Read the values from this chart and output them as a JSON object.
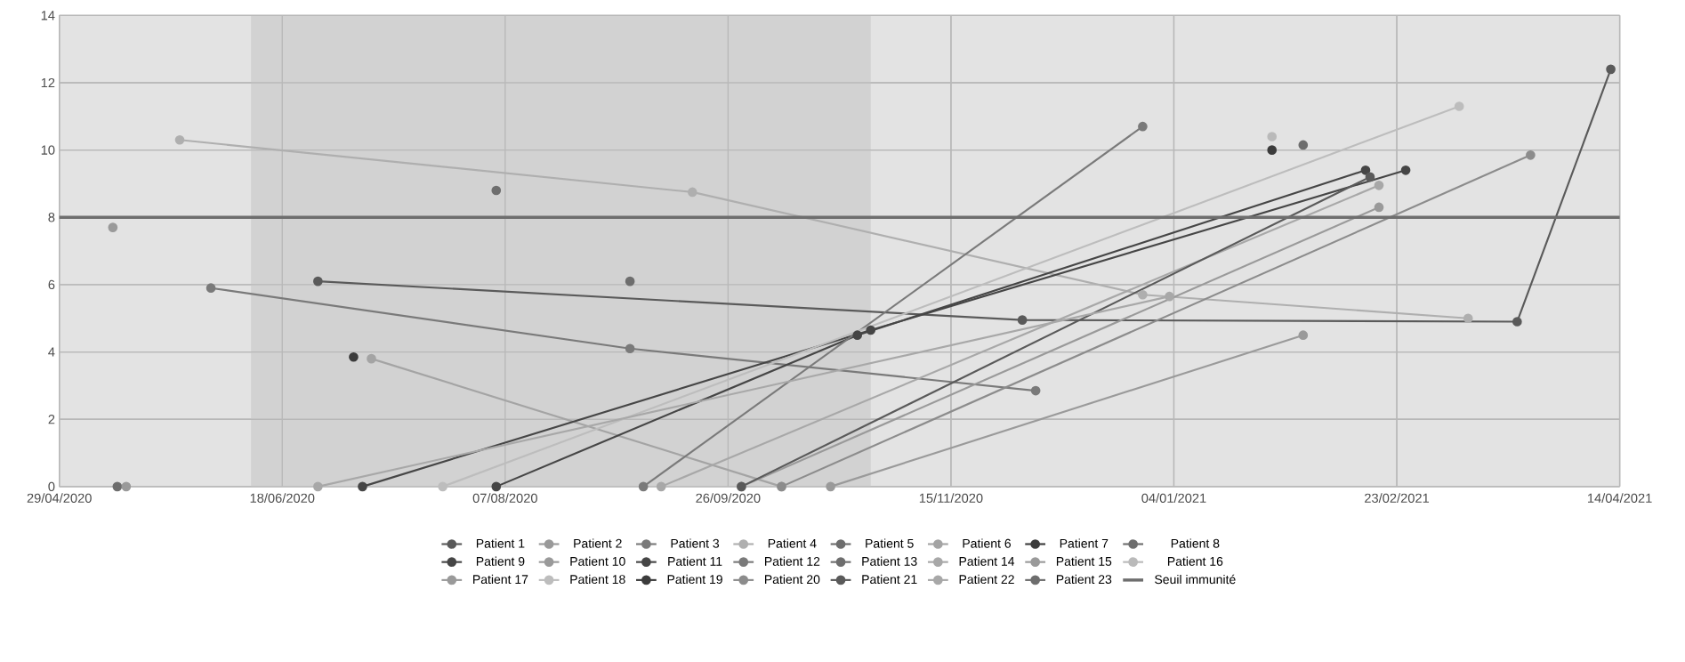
{
  "chart_data": {
    "type": "line",
    "marker": "circle",
    "grid": true,
    "legend": "bottom",
    "xlim": [
      "2020-04-29",
      "2021-04-14"
    ],
    "xticks": [
      {
        "value": "2020-04-29",
        "label": "29/04/2020"
      },
      {
        "value": "2020-06-18",
        "label": "18/06/2020"
      },
      {
        "value": "2020-08-07",
        "label": "07/08/2020"
      },
      {
        "value": "2020-09-26",
        "label": "26/09/2020"
      },
      {
        "value": "2020-11-15",
        "label": "15/11/2020"
      },
      {
        "value": "2021-01-04",
        "label": "04/01/2021"
      },
      {
        "value": "2021-02-23",
        "label": "23/02/2021"
      },
      {
        "value": "2021-04-14",
        "label": "14/04/2021"
      }
    ],
    "ylim": [
      0,
      14
    ],
    "yticks": [
      0,
      2,
      4,
      6,
      8,
      10,
      12,
      14
    ],
    "bands": [
      {
        "axis": "x",
        "from": "2020-06-11",
        "to": "2020-10-28",
        "color": "#d2d2d2"
      }
    ],
    "ref_lines": [
      {
        "axis": "y",
        "value": 8,
        "label": "Seuil immunité",
        "color": "#6e6e6e"
      }
    ],
    "series": [
      {
        "name": "Patient 1",
        "color": "#5a5a5a",
        "x": [
          "2020-06-26",
          "2020-12-01",
          "2021-03-22",
          "2021-04-12"
        ],
        "values": [
          6.1,
          4.95,
          4.9,
          12.4
        ]
      },
      {
        "name": "Patient 2",
        "color": "#9a9a9a",
        "x": [
          "2020-05-11"
        ],
        "values": [
          7.7
        ]
      },
      {
        "name": "Patient 3",
        "color": "#7a7a7a",
        "x": [
          "2020-06-02",
          "2020-09-04",
          "2020-12-04"
        ],
        "values": [
          5.9,
          4.1,
          2.85
        ]
      },
      {
        "name": "Patient 4",
        "color": "#afafaf",
        "x": [
          "2020-05-26",
          "2020-09-18",
          "2020-12-28",
          "2021-03-11"
        ],
        "values": [
          10.3,
          8.75,
          5.7,
          5.0
        ]
      },
      {
        "name": "Patient 5",
        "color": "#6e6e6e",
        "x": [
          "2020-05-12"
        ],
        "values": [
          0
        ]
      },
      {
        "name": "Patient 6",
        "color": "#a4a4a4",
        "x": [
          "2020-07-08",
          "2020-10-08"
        ],
        "values": [
          3.8,
          0
        ]
      },
      {
        "name": "Patient 7",
        "color": "#3c3c3c",
        "x": [
          "2020-07-04"
        ],
        "values": [
          3.85
        ]
      },
      {
        "name": "Patient 8",
        "color": "#6e6e6e",
        "x": [
          "2020-08-05"
        ],
        "values": [
          8.8
        ]
      },
      {
        "name": "Patient 9",
        "color": "#464646",
        "x": [
          "2020-07-06",
          "2020-10-28",
          "2021-02-25"
        ],
        "values": [
          0,
          4.65,
          9.4
        ]
      },
      {
        "name": "Patient 10",
        "color": "#9a9a9a",
        "x": [
          "2020-05-14"
        ],
        "values": [
          0
        ]
      },
      {
        "name": "Patient 11",
        "color": "#464646",
        "x": [
          "2020-08-05",
          "2020-10-25",
          "2021-02-16"
        ],
        "values": [
          0,
          4.5,
          9.4
        ]
      },
      {
        "name": "Patient 12",
        "color": "#7a7a7a",
        "x": [
          "2020-09-07",
          "2020-12-28"
        ],
        "values": [
          0,
          10.7
        ]
      },
      {
        "name": "Patient 13",
        "color": "#6e6e6e",
        "x": [
          "2020-09-04"
        ],
        "values": [
          6.1
        ]
      },
      {
        "name": "Patient 14",
        "color": "#a8a8a8",
        "x": [
          "2020-09-11",
          "2021-02-19"
        ],
        "values": [
          0,
          8.95
        ]
      },
      {
        "name": "Patient 15",
        "color": "#9a9a9a",
        "x": [
          "2020-09-29",
          "2021-02-19"
        ],
        "values": [
          0,
          8.3
        ]
      },
      {
        "name": "Patient 16",
        "color": "#bababa",
        "x": [
          "2021-01-26"
        ],
        "values": [
          10.4
        ]
      },
      {
        "name": "Patient 17",
        "color": "#9a9a9a",
        "x": [
          "2020-10-19",
          "2021-02-02"
        ],
        "values": [
          0,
          4.5
        ]
      },
      {
        "name": "Patient 18",
        "color": "#bdbdbd",
        "x": [
          "2020-07-24",
          "2021-03-09"
        ],
        "values": [
          0,
          11.3
        ]
      },
      {
        "name": "Patient 19",
        "color": "#3c3c3c",
        "x": [
          "2021-01-26"
        ],
        "values": [
          10.0
        ]
      },
      {
        "name": "Patient 20",
        "color": "#8c8c8c",
        "x": [
          "2020-10-08",
          "2021-03-25"
        ],
        "values": [
          0,
          9.85
        ]
      },
      {
        "name": "Patient 21",
        "color": "#5a5a5a",
        "x": [
          "2020-09-29",
          "2021-02-17"
        ],
        "values": [
          0,
          9.2
        ]
      },
      {
        "name": "Patient 22",
        "color": "#a8a8a8",
        "x": [
          "2020-06-26",
          "2021-01-03"
        ],
        "values": [
          0,
          5.65
        ]
      },
      {
        "name": "Patient 23",
        "color": "#6e6e6e",
        "x": [
          "2021-02-02"
        ],
        "values": [
          10.15
        ]
      }
    ]
  }
}
